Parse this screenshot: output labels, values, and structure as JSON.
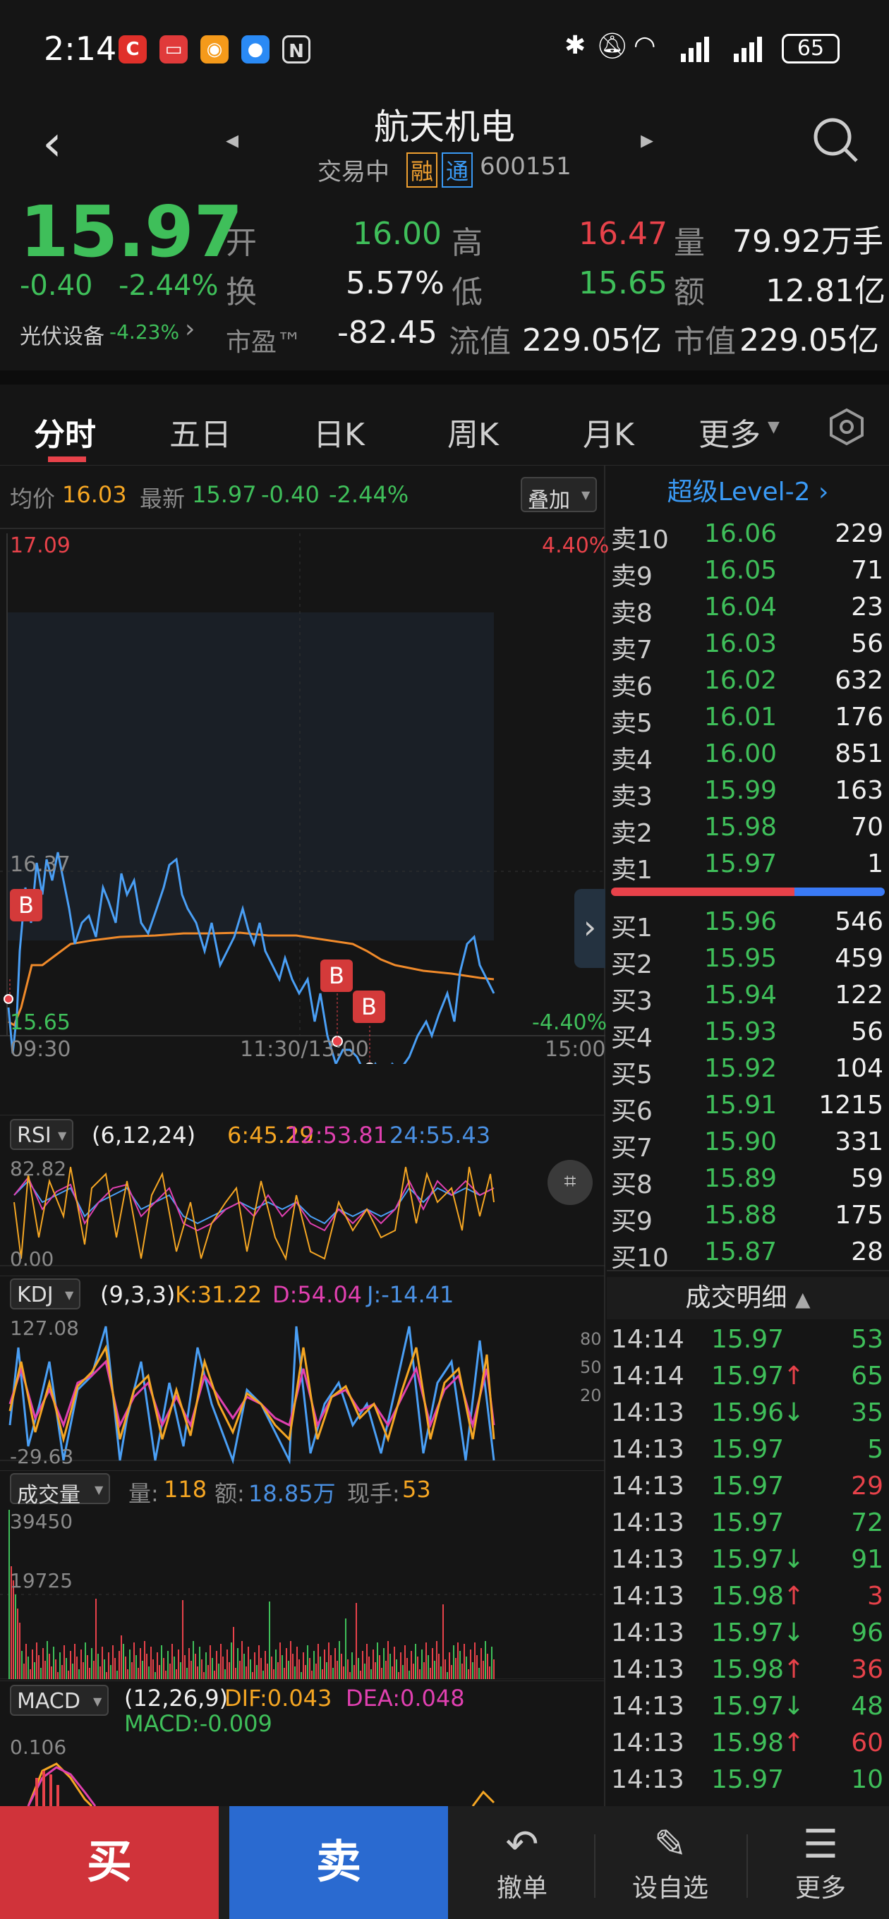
{
  "status": {
    "time": "2:14",
    "battery": "65"
  },
  "header": {
    "title": "航天机电",
    "trade_status": "交易中",
    "tag_rong": "融",
    "tag_tong": "通",
    "code": "600151"
  },
  "quote": {
    "price": "15.97",
    "change": "-0.40",
    "change_pct": "-2.44%",
    "sector": "光伏设备",
    "sector_pct": "-4.23%",
    "open_label": "开",
    "open": "16.00",
    "high_label": "高",
    "high": "16.47",
    "vol_label": "量",
    "vol": "79.92万手",
    "turnover_label": "换",
    "turnover": "5.57%",
    "low_label": "低",
    "low": "15.65",
    "amount_label": "额",
    "amount": "12.81亿",
    "pe_label": "市盈™",
    "pe": "-82.45",
    "float_label": "流值",
    "float_cap": "229.05亿",
    "cap_label": "市值",
    "cap": "229.05亿"
  },
  "tabs": [
    "分时",
    "五日",
    "日K",
    "周K",
    "月K",
    "更多"
  ],
  "intraday": {
    "avg_label": "均价",
    "avg": "16.03",
    "latest_label": "最新",
    "latest": "15.97",
    "chg": "-0.40",
    "pct": "-2.44%",
    "overlay": "叠加",
    "ymax": "17.09",
    "ymid": "16.37",
    "ymin": "15.65",
    "pmax": "4.40%",
    "pmin": "-4.40%",
    "t0": "09:30",
    "t1": "11:30/13:00",
    "t2": "15:00",
    "b_marker": "B"
  },
  "rsi": {
    "label": "RSI",
    "params": "(6,12,24)",
    "v6": "6:45.29",
    "v12": "12:53.81",
    "v24": "24:55.43",
    "top": "82.82",
    "bottom": "0.00"
  },
  "kdj": {
    "label": "KDJ",
    "params": "(9,3,3)",
    "k": "K:31.22",
    "d": "D:54.04",
    "j": "J:-14.41",
    "top": "127.08",
    "bottom": "-29.63",
    "l80": "80",
    "l50": "50",
    "l20": "20"
  },
  "volume": {
    "label": "成交量",
    "vol_label": "量:",
    "vol": "118",
    "amt_label": "额:",
    "amt": "18.85万",
    "hand_label": "现手:",
    "hand": "53",
    "top": "39450",
    "mid": "19725"
  },
  "macd": {
    "label": "MACD",
    "params": "(12,26,9)",
    "dif": "DIF:0.043",
    "dea": "DEA:0.048",
    "macd": "MACD:-0.009",
    "top": "0.106"
  },
  "book": {
    "title": "超级Level-2",
    "asks": [
      [
        "卖10",
        "16.06",
        "229"
      ],
      [
        "卖9",
        "16.05",
        "71"
      ],
      [
        "卖8",
        "16.04",
        "23"
      ],
      [
        "卖7",
        "16.03",
        "56"
      ],
      [
        "卖6",
        "16.02",
        "632"
      ],
      [
        "卖5",
        "16.01",
        "176"
      ],
      [
        "卖4",
        "16.00",
        "851"
      ],
      [
        "卖3",
        "15.99",
        "163"
      ],
      [
        "卖2",
        "15.98",
        "70"
      ],
      [
        "卖1",
        "15.97",
        "1"
      ]
    ],
    "bids": [
      [
        "买1",
        "15.96",
        "546"
      ],
      [
        "买2",
        "15.95",
        "459"
      ],
      [
        "买3",
        "15.94",
        "122"
      ],
      [
        "买4",
        "15.93",
        "56"
      ],
      [
        "买5",
        "15.92",
        "104"
      ],
      [
        "买6",
        "15.91",
        "1215"
      ],
      [
        "买7",
        "15.90",
        "331"
      ],
      [
        "买8",
        "15.89",
        "59"
      ],
      [
        "买9",
        "15.88",
        "175"
      ],
      [
        "买10",
        "15.87",
        "28"
      ]
    ],
    "ticks_title": "成交明细",
    "ticks": [
      [
        "14:14",
        "15.97",
        "",
        "53",
        "g"
      ],
      [
        "14:14",
        "15.97",
        "↑",
        "65",
        "g"
      ],
      [
        "14:13",
        "15.96",
        "↓",
        "35",
        "g"
      ],
      [
        "14:13",
        "15.97",
        "",
        "5",
        "g"
      ],
      [
        "14:13",
        "15.97",
        "",
        "29",
        "r"
      ],
      [
        "14:13",
        "15.97",
        "",
        "72",
        "g"
      ],
      [
        "14:13",
        "15.97",
        "↓",
        "91",
        "g"
      ],
      [
        "14:13",
        "15.98",
        "↑",
        "3",
        "r"
      ],
      [
        "14:13",
        "15.97",
        "↓",
        "96",
        "g"
      ],
      [
        "14:13",
        "15.98",
        "↑",
        "36",
        "r"
      ],
      [
        "14:13",
        "15.97",
        "↓",
        "48",
        "g"
      ],
      [
        "14:13",
        "15.98",
        "↑",
        "60",
        "r"
      ],
      [
        "14:13",
        "15.97",
        "",
        "10",
        "g"
      ]
    ]
  },
  "bottom": {
    "buy": "买",
    "sell": "卖",
    "cancel": "撤单",
    "watch": "设自选",
    "more": "更多"
  },
  "colors": {
    "up": "#e8424a",
    "down": "#3fbf5a",
    "price_line": "#4a9ff5",
    "avg_line": "#f08a2a"
  }
}
